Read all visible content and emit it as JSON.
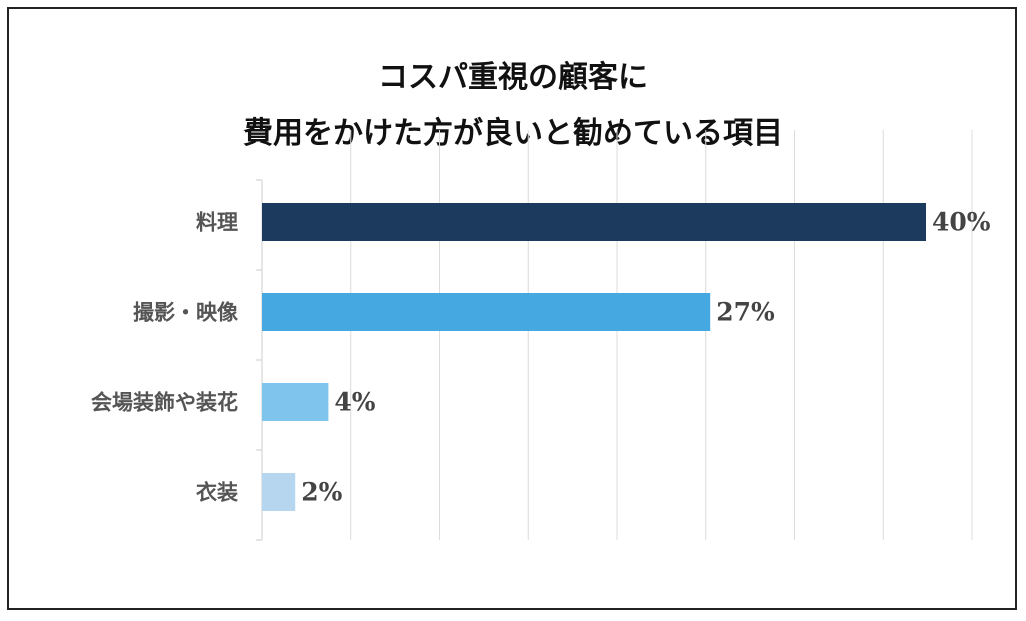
{
  "chart_data": {
    "type": "bar",
    "orientation": "horizontal",
    "title": [
      "コスパ重視の顧客に",
      "費用をかけた方が良いと勧めている項目"
    ],
    "categories": [
      "料理",
      "撮影・映像",
      "会場装飾や装花",
      "衣装"
    ],
    "values": [
      40,
      27,
      4,
      2
    ],
    "value_labels": [
      "40%",
      "27%",
      "4%",
      "2%"
    ],
    "colors": [
      "#1b3a5e",
      "#46a8e0",
      "#7ec4ec",
      "#b6d6f0"
    ],
    "xlim": [
      0,
      40
    ],
    "grid": true,
    "legend": "none"
  }
}
